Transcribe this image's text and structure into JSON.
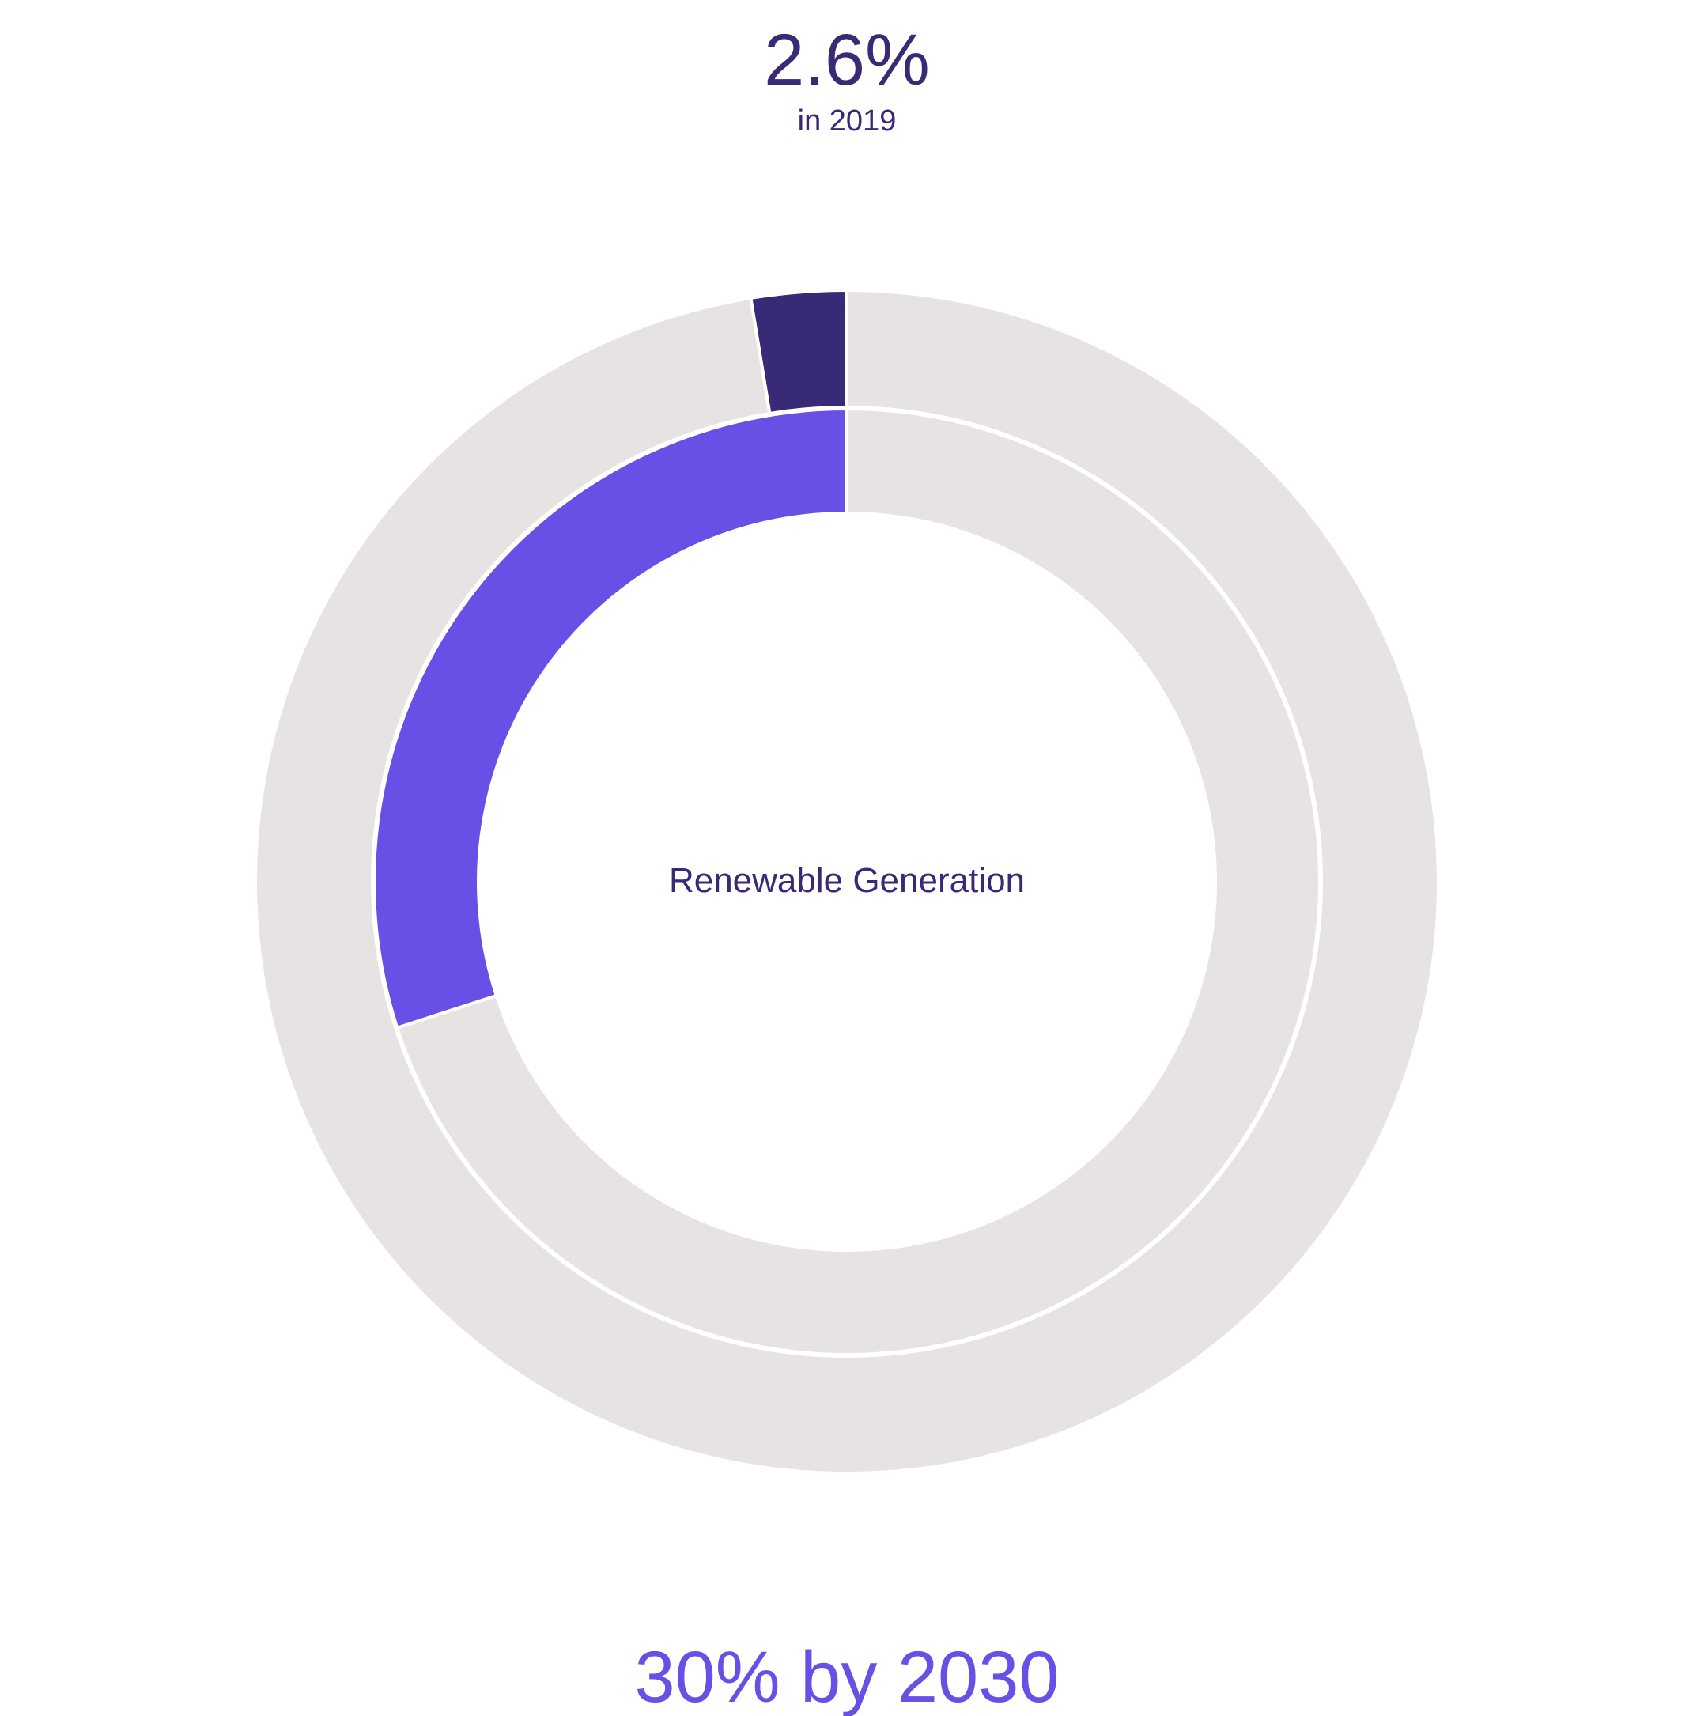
{
  "chart_data": {
    "type": "pie",
    "subtype": "nested-donut",
    "headline": {
      "value": "2.6%",
      "caption": "in 2019"
    },
    "center_label": "Renewable Generation",
    "footer": "30% by 2030",
    "rings": [
      {
        "ring": "outer",
        "slices": [
          {
            "value": 2.6,
            "color": "#382a77"
          },
          {
            "value": 97.4,
            "color": "#e8e3e3"
          }
        ]
      },
      {
        "ring": "inner",
        "slices": [
          {
            "value": 30,
            "color": "#684fe6"
          },
          {
            "value": 70,
            "color": "#e8e3e3"
          }
        ]
      }
    ],
    "colors": {
      "headline": "#382a77",
      "caption": "#382a77",
      "center_label": "#382a77",
      "footer": "#684fe6",
      "remainder": "#e8e3e3",
      "separator": "#ffffff"
    }
  }
}
